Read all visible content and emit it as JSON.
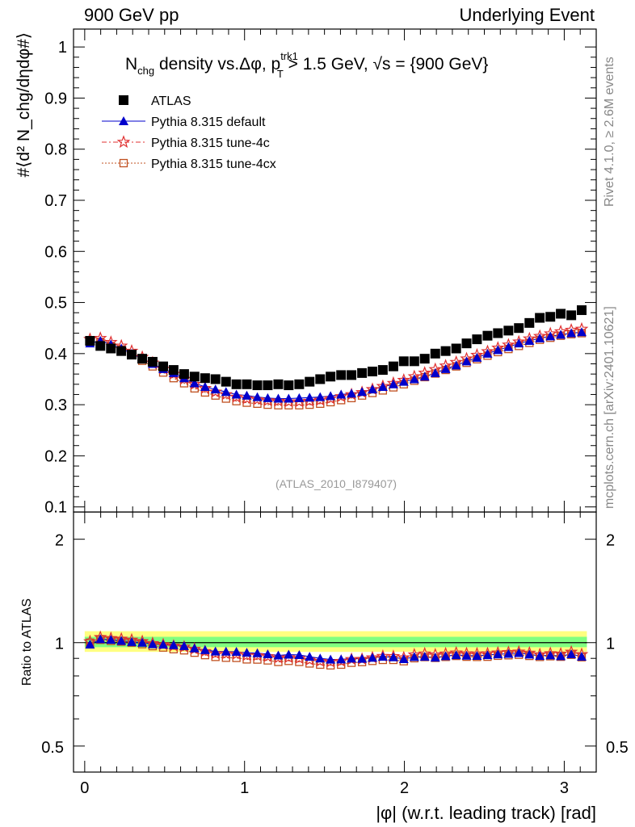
{
  "header": {
    "left": "900 GeV pp",
    "right": "Underlying Event"
  },
  "side_text": {
    "rivet": "Rivet 4.1.0, ≥ 2.6M events",
    "mcplots": "mcplots.cern.ch [arXiv:2401.10621]"
  },
  "watermark": "(ATLAS_2010_I879407)",
  "colors": {
    "atlas": "#000000",
    "default": "#0000cc",
    "tune4c": "#e03030",
    "tune4cx": "#c05020",
    "band_outer": "#ffff80",
    "band_inner": "#80ff80"
  },
  "chart_data": [
    {
      "type": "scatter",
      "panel": "main",
      "title": {
        "pre": "N",
        "sub": "chg",
        "mid": " density vs.Δφ, p",
        "sup2": "trk1",
        "sub2": "T",
        "post": " > 1.5 GeV, √s = {900 GeV}"
      },
      "ylabel": "#⟨d² N_chg/dηdφ#⟩",
      "ylim": [
        0.09,
        1.035
      ],
      "yticks": [
        "0.1",
        "0.2",
        "0.3",
        "0.4",
        "0.5",
        "0.6",
        "0.7",
        "0.8",
        "0.9",
        "1"
      ],
      "xlim": [
        -0.07,
        3.2
      ],
      "legend": [
        "ATLAS",
        "Pythia 8.315 default",
        "Pythia 8.315 tune-4c",
        "Pythia 8.315 tune-4cx"
      ],
      "legend_position": "top-left",
      "x": [
        0.033,
        0.098,
        0.164,
        0.229,
        0.294,
        0.36,
        0.425,
        0.491,
        0.556,
        0.622,
        0.687,
        0.753,
        0.818,
        0.884,
        0.949,
        1.014,
        1.08,
        1.145,
        1.211,
        1.276,
        1.342,
        1.407,
        1.473,
        1.538,
        1.604,
        1.669,
        1.735,
        1.8,
        1.865,
        1.931,
        1.996,
        2.062,
        2.127,
        2.193,
        2.258,
        2.324,
        2.389,
        2.454,
        2.52,
        2.585,
        2.651,
        2.716,
        2.782,
        2.847,
        2.913,
        2.978,
        3.044,
        3.109
      ],
      "series": [
        {
          "name": "ATLAS",
          "values": [
            0.425,
            0.415,
            0.41,
            0.405,
            0.398,
            0.39,
            0.384,
            0.375,
            0.368,
            0.36,
            0.355,
            0.352,
            0.35,
            0.345,
            0.34,
            0.34,
            0.338,
            0.338,
            0.34,
            0.338,
            0.34,
            0.345,
            0.35,
            0.355,
            0.358,
            0.358,
            0.362,
            0.365,
            0.368,
            0.375,
            0.385,
            0.385,
            0.39,
            0.4,
            0.405,
            0.41,
            0.42,
            0.428,
            0.435,
            0.44,
            0.445,
            0.45,
            0.46,
            0.47,
            0.472,
            0.478,
            0.475,
            0.485
          ]
        },
        {
          "name": "Pythia 8.315 default",
          "values": [
            0.42,
            0.425,
            0.418,
            0.41,
            0.4,
            0.39,
            0.38,
            0.37,
            0.362,
            0.352,
            0.342,
            0.335,
            0.33,
            0.325,
            0.32,
            0.318,
            0.315,
            0.313,
            0.312,
            0.312,
            0.313,
            0.314,
            0.315,
            0.317,
            0.32,
            0.322,
            0.325,
            0.33,
            0.335,
            0.34,
            0.345,
            0.35,
            0.355,
            0.362,
            0.37,
            0.377,
            0.385,
            0.392,
            0.4,
            0.407,
            0.413,
            0.42,
            0.425,
            0.43,
            0.434,
            0.437,
            0.44,
            0.442
          ]
        },
        {
          "name": "Pythia 8.315 tune-4c",
          "values": [
            0.428,
            0.43,
            0.422,
            0.415,
            0.405,
            0.393,
            0.382,
            0.37,
            0.36,
            0.35,
            0.34,
            0.332,
            0.325,
            0.32,
            0.315,
            0.312,
            0.31,
            0.308,
            0.307,
            0.306,
            0.306,
            0.307,
            0.309,
            0.312,
            0.316,
            0.32,
            0.324,
            0.33,
            0.336,
            0.342,
            0.348,
            0.355,
            0.362,
            0.369,
            0.376,
            0.383,
            0.39,
            0.397,
            0.404,
            0.411,
            0.417,
            0.423,
            0.429,
            0.434,
            0.439,
            0.443,
            0.446,
            0.448
          ]
        },
        {
          "name": "Pythia 8.315 tune-4cx",
          "values": [
            0.425,
            0.423,
            0.415,
            0.408,
            0.398,
            0.386,
            0.375,
            0.363,
            0.352,
            0.342,
            0.332,
            0.324,
            0.318,
            0.312,
            0.307,
            0.304,
            0.302,
            0.3,
            0.299,
            0.299,
            0.299,
            0.3,
            0.302,
            0.305,
            0.309,
            0.313,
            0.318,
            0.323,
            0.328,
            0.334,
            0.34,
            0.347,
            0.354,
            0.361,
            0.368,
            0.375,
            0.382,
            0.389,
            0.396,
            0.403,
            0.409,
            0.415,
            0.421,
            0.427,
            0.431,
            0.435,
            0.438,
            0.44
          ]
        }
      ]
    },
    {
      "type": "scatter",
      "panel": "ratio",
      "ylabel": "Ratio to ATLAS",
      "ylim": [
        0.42,
        2.4
      ],
      "ylog": true,
      "yticks_labeled": [
        "0.5",
        "1",
        "2"
      ],
      "xlabel": "|φ| (w.r.t. leading track) [rad]",
      "xticks": [
        "0",
        "1",
        "2",
        "3"
      ],
      "xlim": [
        -0.07,
        3.2
      ],
      "band": {
        "outer": [
          0.94,
          1.08
        ],
        "inner": [
          0.97,
          1.04
        ]
      },
      "series": [
        {
          "name": "Pythia 8.315 default",
          "values": [
            0.988,
            1.024,
            1.02,
            1.012,
            1.005,
            1.0,
            0.99,
            0.987,
            0.984,
            0.978,
            0.963,
            0.952,
            0.943,
            0.942,
            0.941,
            0.935,
            0.932,
            0.926,
            0.918,
            0.923,
            0.921,
            0.91,
            0.9,
            0.893,
            0.894,
            0.899,
            0.898,
            0.904,
            0.91,
            0.907,
            0.896,
            0.909,
            0.91,
            0.905,
            0.914,
            0.92,
            0.917,
            0.916,
            0.92,
            0.925,
            0.928,
            0.933,
            0.924,
            0.915,
            0.919,
            0.914,
            0.926,
            0.911
          ]
        },
        {
          "name": "Pythia 8.315 tune-4c",
          "values": [
            1.007,
            1.036,
            1.029,
            1.025,
            1.018,
            1.008,
            0.995,
            0.987,
            0.978,
            0.972,
            0.958,
            0.943,
            0.929,
            0.928,
            0.926,
            0.918,
            0.917,
            0.911,
            0.903,
            0.905,
            0.9,
            0.89,
            0.883,
            0.879,
            0.883,
            0.894,
            0.895,
            0.904,
            0.913,
            0.912,
            0.904,
            0.922,
            0.928,
            0.922,
            0.928,
            0.934,
            0.929,
            0.928,
            0.929,
            0.934,
            0.937,
            0.94,
            0.933,
            0.923,
            0.93,
            0.927,
            0.939,
            0.924
          ]
        },
        {
          "name": "Pythia 8.315 tune-4cx",
          "values": [
            1.0,
            1.019,
            1.012,
            1.007,
            1.0,
            0.99,
            0.977,
            0.968,
            0.957,
            0.95,
            0.935,
            0.92,
            0.909,
            0.904,
            0.903,
            0.894,
            0.893,
            0.888,
            0.879,
            0.885,
            0.879,
            0.87,
            0.863,
            0.859,
            0.863,
            0.874,
            0.878,
            0.885,
            0.891,
            0.891,
            0.883,
            0.901,
            0.908,
            0.903,
            0.909,
            0.915,
            0.91,
            0.909,
            0.91,
            0.916,
            0.919,
            0.922,
            0.915,
            0.909,
            0.913,
            0.91,
            0.922,
            0.907
          ]
        }
      ]
    }
  ]
}
